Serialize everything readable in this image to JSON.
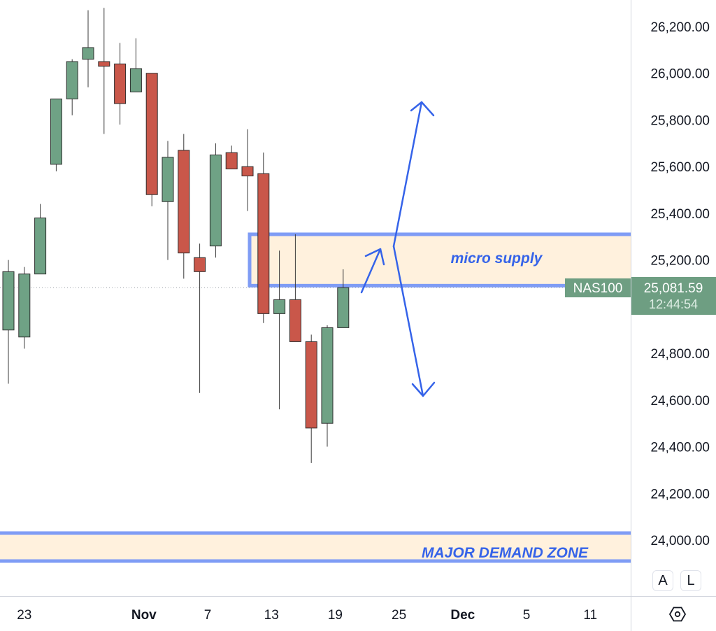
{
  "chart_data": {
    "type": "candlestick",
    "symbol": "NAS100",
    "last_price": "25,081.59",
    "countdown": "12:44:54",
    "y_axis": {
      "ticks": [
        26200,
        26000,
        25800,
        25600,
        25400,
        25200,
        24800,
        24600,
        24400,
        24200,
        24000
      ],
      "tick_labels": [
        "26,200.00",
        "26,000.00",
        "25,800.00",
        "25,600.00",
        "25,400.00",
        "25,200.00",
        "24,800.00",
        "24,600.00",
        "24,400.00",
        "24,200.00",
        "24,000.00"
      ],
      "ylim": [
        23750,
        26310
      ]
    },
    "x_axis": {
      "tick_labels": [
        "23",
        "Nov",
        "7",
        "13",
        "19",
        "25",
        "Dec",
        "5",
        "11"
      ],
      "tick_bar_index": [
        1,
        8.5,
        12.5,
        16.5,
        20.5,
        24.5,
        28.5,
        32.5,
        36.5
      ]
    },
    "candles": [
      {
        "o": 24900,
        "h": 25200,
        "l": 24670,
        "c": 25150
      },
      {
        "o": 24870,
        "h": 25170,
        "l": 24820,
        "c": 25140
      },
      {
        "o": 25140,
        "h": 25440,
        "l": 25140,
        "c": 25380
      },
      {
        "o": 25610,
        "h": 25890,
        "l": 25580,
        "c": 25890
      },
      {
        "o": 25890,
        "h": 26060,
        "l": 25820,
        "c": 26050
      },
      {
        "o": 26060,
        "h": 26270,
        "l": 25940,
        "c": 26110
      },
      {
        "o": 26050,
        "h": 26280,
        "l": 25740,
        "c": 26030
      },
      {
        "o": 26040,
        "h": 26130,
        "l": 25780,
        "c": 25870
      },
      {
        "o": 25920,
        "h": 26150,
        "l": 25920,
        "c": 26020
      },
      {
        "o": 26000,
        "h": 26000,
        "l": 25430,
        "c": 25480
      },
      {
        "o": 25450,
        "h": 25710,
        "l": 25200,
        "c": 25640
      },
      {
        "o": 25670,
        "h": 25740,
        "l": 25120,
        "c": 25230
      },
      {
        "o": 25210,
        "h": 25270,
        "l": 24630,
        "c": 25150
      },
      {
        "o": 25260,
        "h": 25700,
        "l": 25210,
        "c": 25650
      },
      {
        "o": 25660,
        "h": 25690,
        "l": 25590,
        "c": 25590
      },
      {
        "o": 25600,
        "h": 25760,
        "l": 25410,
        "c": 25560
      },
      {
        "o": 25570,
        "h": 25660,
        "l": 24930,
        "c": 24970
      },
      {
        "o": 24970,
        "h": 25240,
        "l": 24560,
        "c": 25030
      },
      {
        "o": 25030,
        "h": 25310,
        "l": 24870,
        "c": 24850
      },
      {
        "o": 24850,
        "h": 24880,
        "l": 24330,
        "c": 24480
      },
      {
        "o": 24500,
        "h": 24920,
        "l": 24400,
        "c": 24910
      },
      {
        "o": 24910,
        "h": 25160,
        "l": 24910,
        "c": 25081.59
      }
    ],
    "zones": [
      {
        "label": "micro supply",
        "low": 25090,
        "high": 25310
      },
      {
        "label": "MAJOR DEMAND ZONE",
        "low": 23910,
        "high": 24030
      }
    ],
    "colors": {
      "up": "#6fa285",
      "down": "#c9574a",
      "zone_fill": "#fff1dd",
      "zone_border": "#7f9cf5",
      "annotation": "#3563e9",
      "price_label": "#6e9e82"
    }
  },
  "corner": {
    "btn_a": "A",
    "btn_l": "L",
    "settings_icon": "hexagon-gear"
  }
}
